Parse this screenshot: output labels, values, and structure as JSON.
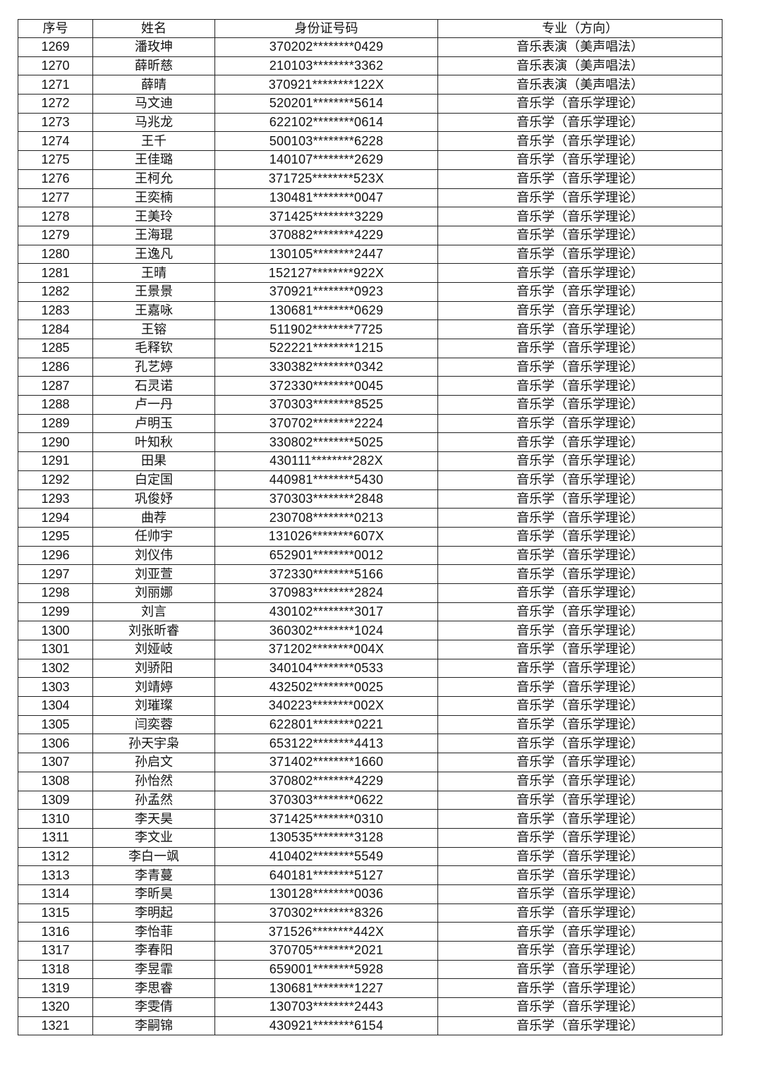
{
  "table": {
    "headers": [
      "序号",
      "姓名",
      "身份证号码",
      "专业（方向）"
    ],
    "rows": [
      [
        "1269",
        "潘玫坤",
        "370202********0429",
        "音乐表演（美声唱法）"
      ],
      [
        "1270",
        "薛昕慈",
        "210103********3362",
        "音乐表演（美声唱法）"
      ],
      [
        "1271",
        "薛晴",
        "370921********122X",
        "音乐表演（美声唱法）"
      ],
      [
        "1272",
        "马文迪",
        "520201********5614",
        "音乐学（音乐学理论）"
      ],
      [
        "1273",
        "马兆龙",
        "622102********0614",
        "音乐学（音乐学理论）"
      ],
      [
        "1274",
        "王千",
        "500103********6228",
        "音乐学（音乐学理论）"
      ],
      [
        "1275",
        "王佳璐",
        "140107********2629",
        "音乐学（音乐学理论）"
      ],
      [
        "1276",
        "王柯允",
        "371725********523X",
        "音乐学（音乐学理论）"
      ],
      [
        "1277",
        "王奕楠",
        "130481********0047",
        "音乐学（音乐学理论）"
      ],
      [
        "1278",
        "王美玲",
        "371425********3229",
        "音乐学（音乐学理论）"
      ],
      [
        "1279",
        "王海琨",
        "370882********4229",
        "音乐学（音乐学理论）"
      ],
      [
        "1280",
        "王逸凡",
        "130105********2447",
        "音乐学（音乐学理论）"
      ],
      [
        "1281",
        "王晴",
        "152127********922X",
        "音乐学（音乐学理论）"
      ],
      [
        "1282",
        "王景景",
        "370921********0923",
        "音乐学（音乐学理论）"
      ],
      [
        "1283",
        "王嘉咏",
        "130681********0629",
        "音乐学（音乐学理论）"
      ],
      [
        "1284",
        "王镕",
        "511902********7725",
        "音乐学（音乐学理论）"
      ],
      [
        "1285",
        "毛释钦",
        "522221********1215",
        "音乐学（音乐学理论）"
      ],
      [
        "1286",
        "孔艺婷",
        "330382********0342",
        "音乐学（音乐学理论）"
      ],
      [
        "1287",
        "石灵诺",
        "372330********0045",
        "音乐学（音乐学理论）"
      ],
      [
        "1288",
        "卢一丹",
        "370303********8525",
        "音乐学（音乐学理论）"
      ],
      [
        "1289",
        "卢明玉",
        "370702********2224",
        "音乐学（音乐学理论）"
      ],
      [
        "1290",
        "叶知秋",
        "330802********5025",
        "音乐学（音乐学理论）"
      ],
      [
        "1291",
        "田果",
        "430111********282X",
        "音乐学（音乐学理论）"
      ],
      [
        "1292",
        "白定国",
        "440981********5430",
        "音乐学（音乐学理论）"
      ],
      [
        "1293",
        "巩俊妤",
        "370303********2848",
        "音乐学（音乐学理论）"
      ],
      [
        "1294",
        "曲荐",
        "230708********0213",
        "音乐学（音乐学理论）"
      ],
      [
        "1295",
        "任帅宇",
        "131026********607X",
        "音乐学（音乐学理论）"
      ],
      [
        "1296",
        "刘仪伟",
        "652901********0012",
        "音乐学（音乐学理论）"
      ],
      [
        "1297",
        "刘亚萱",
        "372330********5166",
        "音乐学（音乐学理论）"
      ],
      [
        "1298",
        "刘丽娜",
        "370983********2824",
        "音乐学（音乐学理论）"
      ],
      [
        "1299",
        "刘言",
        "430102********3017",
        "音乐学（音乐学理论）"
      ],
      [
        "1300",
        "刘张昕睿",
        "360302********1024",
        "音乐学（音乐学理论）"
      ],
      [
        "1301",
        "刘娅岐",
        "371202********004X",
        "音乐学（音乐学理论）"
      ],
      [
        "1302",
        "刘骄阳",
        "340104********0533",
        "音乐学（音乐学理论）"
      ],
      [
        "1303",
        "刘靖婷",
        "432502********0025",
        "音乐学（音乐学理论）"
      ],
      [
        "1304",
        "刘璀璨",
        "340223********002X",
        "音乐学（音乐学理论）"
      ],
      [
        "1305",
        "闫奕蓉",
        "622801********0221",
        "音乐学（音乐学理论）"
      ],
      [
        "1306",
        "孙天宇枭",
        "653122********4413",
        "音乐学（音乐学理论）"
      ],
      [
        "1307",
        "孙启文",
        "371402********1660",
        "音乐学（音乐学理论）"
      ],
      [
        "1308",
        "孙怡然",
        "370802********4229",
        "音乐学（音乐学理论）"
      ],
      [
        "1309",
        "孙孟然",
        "370303********0622",
        "音乐学（音乐学理论）"
      ],
      [
        "1310",
        "李天昊",
        "371425********0310",
        "音乐学（音乐学理论）"
      ],
      [
        "1311",
        "李文业",
        "130535********3128",
        "音乐学（音乐学理论）"
      ],
      [
        "1312",
        "李白一飒",
        "410402********5549",
        "音乐学（音乐学理论）"
      ],
      [
        "1313",
        "李青蔓",
        "640181********5127",
        "音乐学（音乐学理论）"
      ],
      [
        "1314",
        "李昕昊",
        "130128********0036",
        "音乐学（音乐学理论）"
      ],
      [
        "1315",
        "李明起",
        "370302********8326",
        "音乐学（音乐学理论）"
      ],
      [
        "1316",
        "李怡菲",
        "371526********442X",
        "音乐学（音乐学理论）"
      ],
      [
        "1317",
        "李春阳",
        "370705********2021",
        "音乐学（音乐学理论）"
      ],
      [
        "1318",
        "李昱霏",
        "659001********5928",
        "音乐学（音乐学理论）"
      ],
      [
        "1319",
        "李思睿",
        "130681********1227",
        "音乐学（音乐学理论）"
      ],
      [
        "1320",
        "李雯倩",
        "130703********2443",
        "音乐学（音乐学理论）"
      ],
      [
        "1321",
        "李嗣锦",
        "430921********6154",
        "音乐学（音乐学理论）"
      ]
    ]
  }
}
